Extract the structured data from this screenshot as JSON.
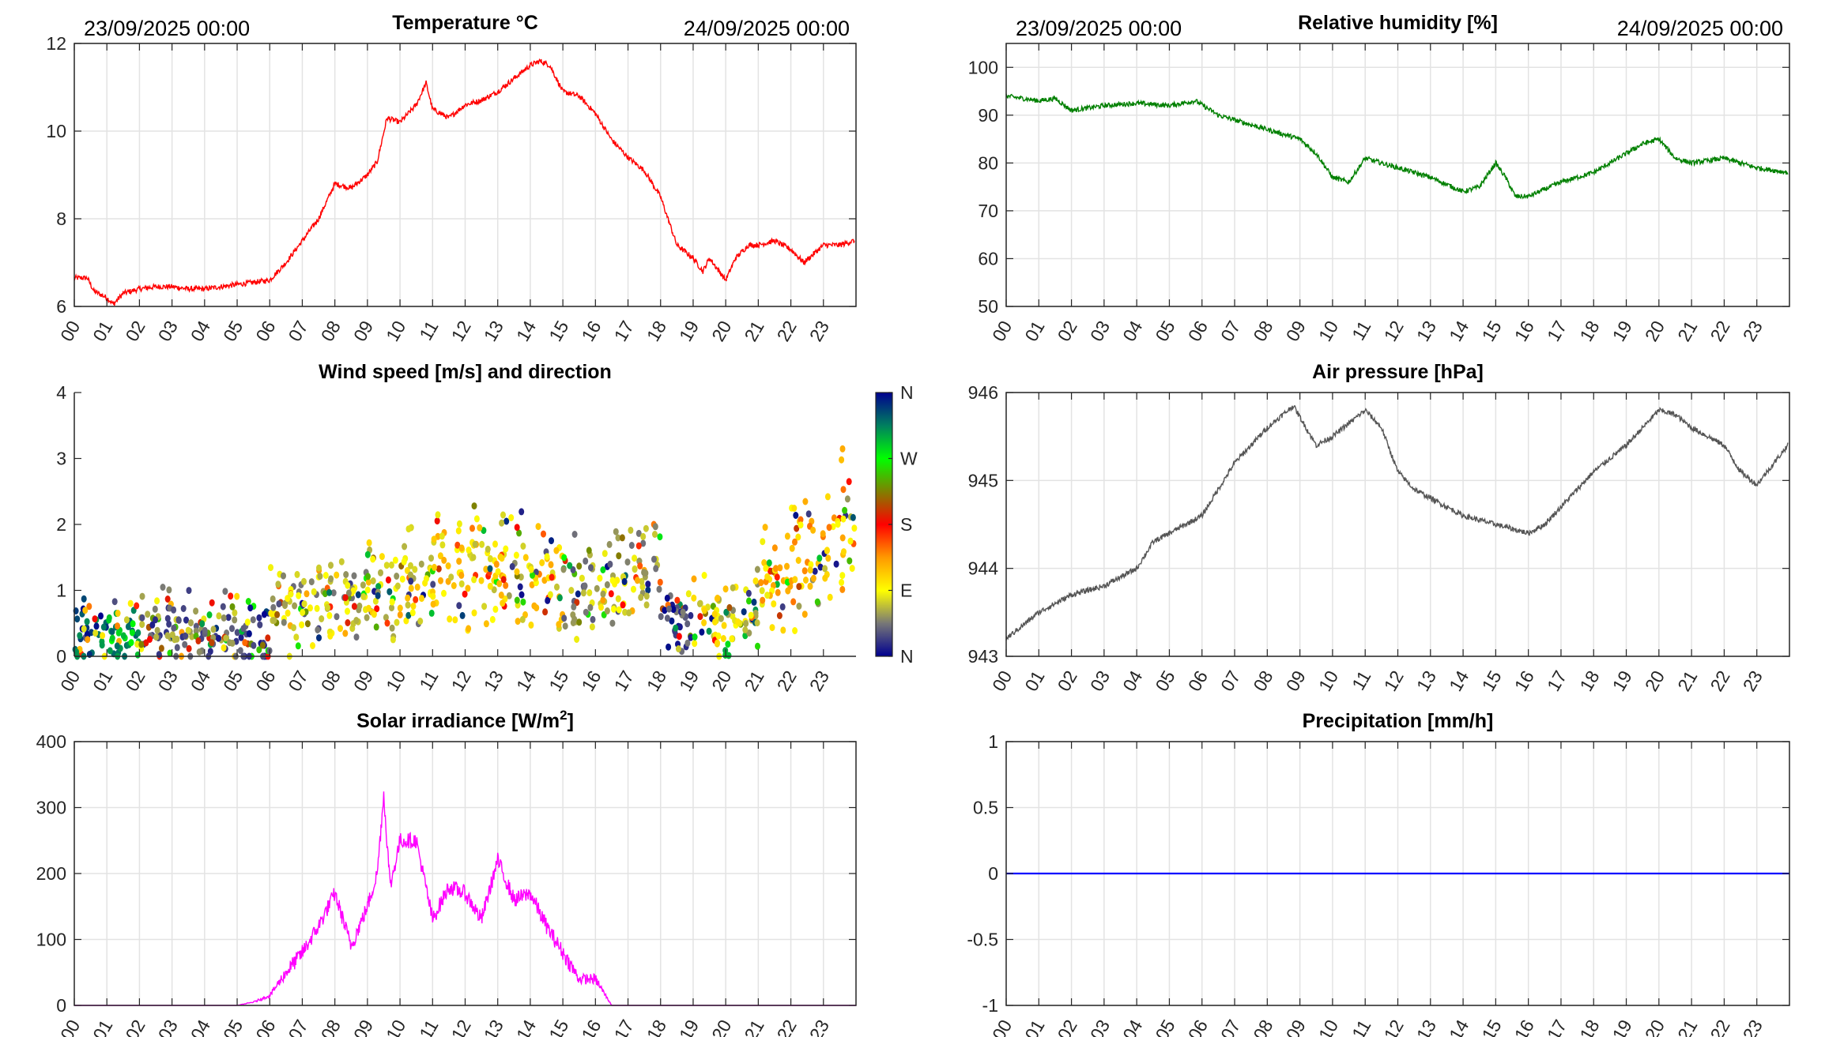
{
  "chart_data": [
    {
      "id": "temperature",
      "type": "line",
      "title": "Temperature °C",
      "date_start": "23/09/2025 00:00",
      "date_end": "24/09/2025 00:00",
      "color": "#ff0000",
      "xlim": [
        0,
        24
      ],
      "ylim": [
        6,
        12
      ],
      "yticks": [
        "6",
        "8",
        "10",
        "12"
      ],
      "grid": true,
      "x": [
        0,
        0.4,
        0.6,
        1,
        1.2,
        1.5,
        2,
        2.5,
        3,
        3.5,
        4,
        4.5,
        5,
        5.5,
        6,
        6.5,
        7,
        7.5,
        8,
        8.5,
        9,
        9.3,
        9.6,
        10,
        10.5,
        10.8,
        11,
        11.5,
        12,
        12.5,
        13,
        13.5,
        14,
        14.3,
        14.6,
        15,
        15.5,
        16,
        16.5,
        17,
        17.5,
        18,
        18.5,
        19,
        19.3,
        19.5,
        20,
        20.3,
        20.7,
        21,
        21.5,
        22,
        22.4,
        23,
        23.5,
        23.95
      ],
      "y": [
        6.65,
        6.65,
        6.35,
        6.2,
        6.05,
        6.3,
        6.4,
        6.45,
        6.45,
        6.4,
        6.4,
        6.45,
        6.5,
        6.55,
        6.6,
        7.0,
        7.5,
        8.0,
        8.8,
        8.7,
        9.0,
        9.3,
        10.3,
        10.2,
        10.6,
        11.1,
        10.5,
        10.3,
        10.6,
        10.7,
        10.9,
        11.2,
        11.5,
        11.6,
        11.5,
        10.9,
        10.8,
        10.4,
        9.8,
        9.4,
        9.1,
        8.5,
        7.4,
        7.1,
        6.8,
        7.1,
        6.6,
        7.1,
        7.4,
        7.4,
        7.5,
        7.3,
        7.0,
        7.4,
        7.4,
        7.5
      ]
    },
    {
      "id": "humidity",
      "type": "line",
      "title": "Relative humidity [%]",
      "date_start": "23/09/2025 00:00",
      "date_end": "24/09/2025 00:00",
      "color": "#008000",
      "xlim": [
        0,
        24
      ],
      "ylim": [
        50,
        105
      ],
      "yticks": [
        "50",
        "60",
        "70",
        "80",
        "90",
        "100"
      ],
      "grid": true,
      "x": [
        0,
        1,
        1.5,
        2,
        3,
        4,
        5,
        5.8,
        6.5,
        7.5,
        8.5,
        9,
        9.5,
        10,
        10.5,
        11,
        12,
        13,
        14,
        14.5,
        15,
        15.3,
        15.6,
        16,
        17,
        18,
        19,
        19.5,
        20,
        20.5,
        21,
        22,
        22.5,
        23,
        23.95
      ],
      "y": [
        94,
        93,
        93.5,
        91,
        92,
        92.5,
        92,
        93,
        90,
        88,
        86,
        85,
        82,
        77,
        76,
        81,
        79,
        77,
        74,
        75,
        80,
        77,
        73,
        73,
        76,
        78,
        82,
        84,
        85,
        81,
        80,
        81,
        80,
        79,
        78
      ]
    },
    {
      "id": "wind",
      "type": "scatter",
      "title": "Wind speed [m/s] and direction",
      "xlim": [
        0,
        24
      ],
      "ylim": [
        0,
        4
      ],
      "yticks": [
        "0",
        "1",
        "2",
        "3",
        "4"
      ],
      "grid": false,
      "colorbar_labels": [
        "N",
        "W",
        "S",
        "E",
        "N"
      ],
      "colormap": [
        "#00008f",
        "#777777",
        "#ffff00",
        "#ff9900",
        "#ff0000",
        "#808000",
        "#00ff00",
        "#007f5f",
        "#00008f"
      ],
      "hourly_mean_speed": [
        0.35,
        0.3,
        0.45,
        0.35,
        0.4,
        0.35,
        0.8,
        0.8,
        0.85,
        0.95,
        1.1,
        1.35,
        1.3,
        1.25,
        1.15,
        1.2,
        1.35,
        1.3,
        0.5,
        0.5,
        0.7,
        1.1,
        1.4,
        1.9
      ],
      "hourly_dominant_direction_deg": [
        330,
        300,
        40,
        45,
        45,
        30,
        70,
        70,
        70,
        80,
        90,
        100,
        95,
        95,
        100,
        60,
        70,
        70,
        20,
        90,
        80,
        110,
        120,
        115
      ]
    },
    {
      "id": "pressure",
      "type": "line",
      "title": "Air pressure [hPa]",
      "color": "#555555",
      "xlim": [
        0,
        24
      ],
      "ylim": [
        943,
        946
      ],
      "yticks": [
        "943",
        "944",
        "945",
        "946"
      ],
      "grid": true,
      "x": [
        0,
        1,
        2,
        3,
        4,
        4.5,
        5,
        6,
        7,
        8,
        8.8,
        9.5,
        10,
        11,
        11.5,
        12,
        12.5,
        13,
        14,
        15,
        16,
        16.5,
        17,
        18,
        19,
        20,
        20.5,
        21,
        22,
        22.5,
        23,
        23.95
      ],
      "y": [
        943.2,
        943.5,
        943.7,
        943.8,
        944.0,
        944.3,
        944.4,
        944.6,
        945.2,
        945.6,
        945.85,
        945.4,
        945.5,
        945.8,
        945.6,
        945.1,
        944.9,
        944.8,
        944.6,
        944.5,
        944.4,
        944.5,
        944.7,
        945.1,
        945.4,
        945.8,
        945.75,
        945.6,
        945.4,
        945.1,
        944.95,
        945.4
      ]
    },
    {
      "id": "solar",
      "type": "line",
      "title": "Solar irradiance [W/m",
      "title_sup": "2",
      "title_end": "]",
      "color": "#ff00ff",
      "xlim": [
        0,
        24
      ],
      "ylim": [
        0,
        400
      ],
      "yticks": [
        "0",
        "100",
        "200",
        "300",
        "400"
      ],
      "grid": true,
      "x": [
        0,
        5,
        5.5,
        6,
        6.5,
        7,
        7.5,
        8,
        8.5,
        9,
        9.3,
        9.5,
        9.7,
        10,
        10.5,
        11,
        11.5,
        12,
        12.5,
        13,
        13.5,
        14,
        14.5,
        15,
        15.5,
        16,
        16.5,
        24
      ],
      "y": [
        0,
        0,
        5,
        15,
        50,
        80,
        120,
        170,
        90,
        150,
        200,
        320,
        180,
        250,
        250,
        130,
        180,
        170,
        130,
        220,
        160,
        170,
        120,
        80,
        40,
        40,
        0,
        0
      ]
    },
    {
      "id": "precip",
      "type": "line",
      "title": "Precipitation [mm/h]",
      "color": "#0000ff",
      "xlim": [
        0,
        24
      ],
      "ylim": [
        -1,
        1
      ],
      "yticks": [
        "-1",
        "-0.5",
        "0",
        "0.5",
        "1"
      ],
      "grid": true,
      "x": [
        0,
        24
      ],
      "y": [
        0,
        0
      ]
    }
  ],
  "xticks": [
    "00",
    "01",
    "02",
    "03",
    "04",
    "05",
    "06",
    "07",
    "08",
    "09",
    "10",
    "11",
    "12",
    "13",
    "14",
    "15",
    "16",
    "17",
    "18",
    "19",
    "20",
    "21",
    "22",
    "23"
  ]
}
